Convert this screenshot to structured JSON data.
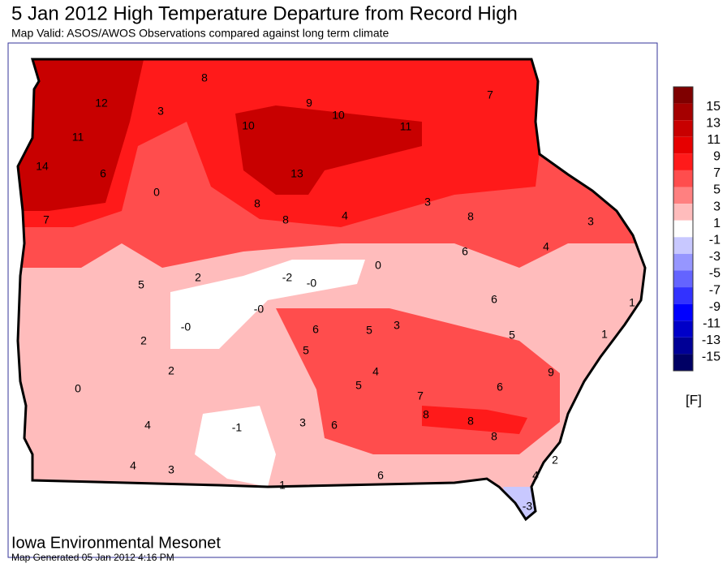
{
  "header": {
    "title": "5 Jan 2012 High Temperature Departure from Record High",
    "subtitle": "Map Valid: ASOS/AWOS Observations compared against long term climate"
  },
  "map": {
    "labels": [
      "8",
      "7",
      "12",
      "3",
      "9",
      "10",
      "10",
      "11",
      "11",
      "14",
      "6",
      "13",
      "0",
      "8",
      "8",
      "4",
      "3",
      "8",
      "3",
      "7",
      "6",
      "4",
      "0",
      "5",
      "2",
      "-2",
      "-0",
      "6",
      "1",
      "-0",
      "-0",
      "6",
      "5",
      "3",
      "5",
      "1",
      "2",
      "5",
      "9",
      "2",
      "4",
      "0",
      "5",
      "7",
      "6",
      "4",
      "-1",
      "3",
      "6",
      "8",
      "8",
      "8",
      "4",
      "3",
      "2",
      "4",
      "1",
      "6",
      "-3"
    ]
  },
  "legend": {
    "labels": [
      "15",
      "13",
      "11",
      "9",
      "7",
      "5",
      "3",
      "1",
      "-1",
      "-3",
      "-5",
      "-7",
      "-9",
      "-11",
      "-13",
      "-15"
    ],
    "colors": [
      "#7f0000",
      "#a50000",
      "#c80000",
      "#e60000",
      "#ff1a1a",
      "#ff4d4d",
      "#ff8080",
      "#ffbcbc",
      "#ffffff",
      "#c8c8ff",
      "#9696ff",
      "#6464ff",
      "#3232ff",
      "#0000ff",
      "#0000c8",
      "#000096",
      "#000064"
    ],
    "unit": "[F]"
  },
  "footer": {
    "org": "Iowa Environmental Mesonet",
    "generated": "Map Generated 05 Jan 2012 4:16 PM"
  }
}
